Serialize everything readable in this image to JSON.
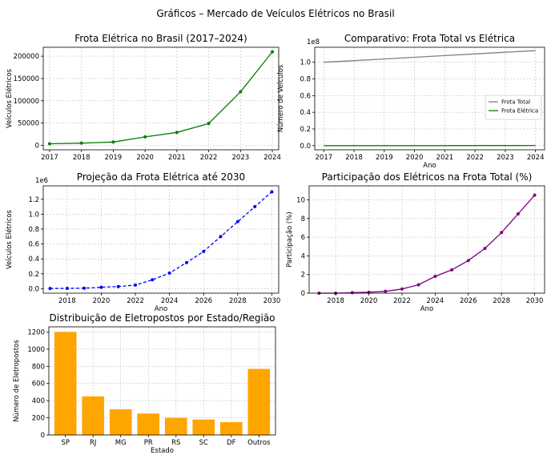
{
  "figure": {
    "suptitle": "Gráficos – Mercado de Veículos Elétricos no Brasil"
  },
  "chart_data": [
    {
      "id": "frota-eletrica",
      "type": "line",
      "title": "Frota Elétrica no Brasil (2017–2024)",
      "xlabel": "",
      "ylabel": "Veículos Elétricos",
      "x": [
        2017,
        2018,
        2019,
        2020,
        2021,
        2022,
        2023,
        2024
      ],
      "xlim": [
        2016.8,
        2024.2
      ],
      "ylim": [
        -10000,
        220000
      ],
      "xticks": [
        2017,
        2018,
        2019,
        2020,
        2021,
        2022,
        2023,
        2024
      ],
      "yticks": [
        0,
        50000,
        100000,
        150000,
        200000
      ],
      "ytick_labels": [
        "0",
        "50000",
        "100000",
        "150000",
        "200000"
      ],
      "grid": true,
      "series": [
        {
          "values": [
            3500,
            5000,
            7500,
            19000,
            29000,
            49000,
            120000,
            210000
          ],
          "color": "#008000",
          "marker": "circle",
          "dash": "solid"
        }
      ]
    },
    {
      "id": "comparativo",
      "type": "line",
      "title": "Comparativo: Frota Total vs Elétrica",
      "xlabel": "Ano",
      "ylabel": "Número de Veículos",
      "offset_label": "1e8",
      "x": [
        2017,
        2018,
        2019,
        2020,
        2021,
        2022,
        2023,
        2024
      ],
      "xlim": [
        2016.7,
        2024.3
      ],
      "ylim": [
        -0.05,
        1.18
      ],
      "xticks": [
        2017,
        2018,
        2019,
        2020,
        2021,
        2022,
        2023,
        2024
      ],
      "yticks": [
        0.0,
        0.2,
        0.4,
        0.6,
        0.8,
        1.0
      ],
      "ytick_labels": [
        "0.0",
        "0.2",
        "0.4",
        "0.6",
        "0.8",
        "1.0"
      ],
      "grid": true,
      "legend": "center-right",
      "series": [
        {
          "name": "Frota Total",
          "values": [
            1.0,
            1.02,
            1.04,
            1.06,
            1.08,
            1.1,
            1.12,
            1.14
          ],
          "color": "#808080",
          "marker": "none",
          "dash": "solid"
        },
        {
          "name": "Frota Elétrica",
          "values": [
            4e-05,
            5e-05,
            8e-05,
            0.00019,
            0.00029,
            0.00049,
            0.0012,
            0.0021
          ],
          "color": "#008000",
          "marker": "none",
          "dash": "solid"
        }
      ]
    },
    {
      "id": "projecao",
      "type": "line",
      "title": "Projeção da Frota Elétrica até 2030",
      "xlabel": "Ano",
      "ylabel": "Veículos Elétricos",
      "offset_label": "1e6",
      "x": [
        2017,
        2018,
        2019,
        2020,
        2021,
        2022,
        2023,
        2024,
        2025,
        2026,
        2027,
        2028,
        2029,
        2030
      ],
      "xlim": [
        2016.6,
        2030.4
      ],
      "ylim": [
        -0.06,
        1.38
      ],
      "xticks": [
        2018,
        2020,
        2022,
        2024,
        2026,
        2028,
        2030
      ],
      "yticks": [
        0.0,
        0.2,
        0.4,
        0.6,
        0.8,
        1.0,
        1.2
      ],
      "ytick_labels": [
        "0.0",
        "0.2",
        "0.4",
        "0.6",
        "0.8",
        "1.0",
        "1.2"
      ],
      "grid": true,
      "series": [
        {
          "values": [
            0.0035,
            0.005,
            0.0075,
            0.019,
            0.029,
            0.049,
            0.12,
            0.21,
            0.35,
            0.5,
            0.7,
            0.9,
            1.1,
            1.3
          ],
          "color": "#0000ff",
          "marker": "circle",
          "dash": "dashed"
        }
      ]
    },
    {
      "id": "participacao",
      "type": "line",
      "title": "Participação dos Elétricos na Frota Total (%)",
      "xlabel": "Ano",
      "ylabel": "Participação (%)",
      "x": [
        2017,
        2018,
        2019,
        2020,
        2021,
        2022,
        2023,
        2024,
        2025,
        2026,
        2027,
        2028,
        2029,
        2030
      ],
      "xlim": [
        2016.4,
        2030.6
      ],
      "ylim": [
        0,
        11.5
      ],
      "xticks": [
        2018,
        2020,
        2022,
        2024,
        2026,
        2028,
        2030
      ],
      "yticks": [
        0,
        2,
        4,
        6,
        8,
        10
      ],
      "ytick_labels": [
        "0",
        "2",
        "4",
        "6",
        "8",
        "10"
      ],
      "grid": true,
      "series": [
        {
          "values": [
            0.0,
            0.0,
            0.05,
            0.1,
            0.2,
            0.45,
            0.9,
            1.8,
            2.5,
            3.5,
            4.8,
            6.5,
            8.5,
            10.5
          ],
          "color": "#800080",
          "marker": "circle",
          "dash": "solid"
        }
      ]
    },
    {
      "id": "eletropostos",
      "type": "bar",
      "title": "Distribuição de Eletropostos por Estado/Região",
      "xlabel": "Estado",
      "ylabel": "Número de Eletropostos",
      "categories": [
        "SP",
        "RJ",
        "MG",
        "PR",
        "RS",
        "SC",
        "DF",
        "Outros"
      ],
      "values": [
        1200,
        450,
        300,
        250,
        200,
        180,
        150,
        770
      ],
      "ylim": [
        0,
        1260
      ],
      "yticks": [
        0,
        200,
        400,
        600,
        800,
        1000,
        1200
      ],
      "ytick_labels": [
        "0",
        "200",
        "400",
        "600",
        "800",
        "1000",
        "1200"
      ],
      "grid": true,
      "color": "#ffa500"
    }
  ]
}
